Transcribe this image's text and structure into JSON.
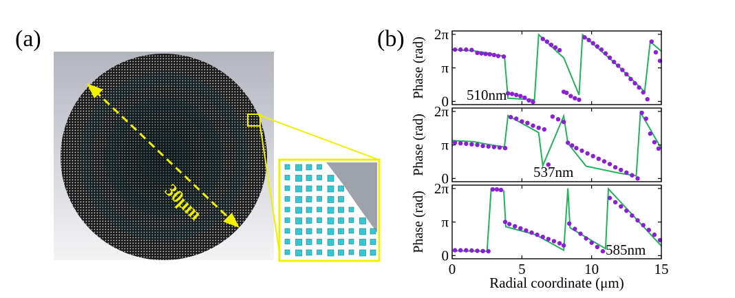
{
  "figure": {
    "panel_a_label": "(a)",
    "panel_b_label": "(b)",
    "diameter_label": "30μm",
    "colors": {
      "background_gradient_top": "#b7b9c2",
      "background_gradient_bottom": "#f2f2f3",
      "lens_disc": "#1b1b1b",
      "pillar_cyan": "#35c8d4",
      "annotation_yellow": "#f0f000",
      "simulation_green": "#22b35a",
      "measurement_purple": "#8a1fd6"
    }
  },
  "chart_data": [
    {
      "type": "line",
      "annotation": "510nm",
      "ylabel": "Phase (rad)",
      "xlim": [
        0,
        15
      ],
      "ylim": [
        -0.3,
        6.6
      ],
      "yticks": [
        {
          "value": 0,
          "label": "0"
        },
        {
          "value": 3.1416,
          "label": "π"
        },
        {
          "value": 6.2832,
          "label": "2π"
        }
      ],
      "series": [
        {
          "style": "line",
          "color": "#22b35a",
          "x": [
            0,
            1.5,
            2.5,
            3.4,
            3.75,
            4,
            5.9,
            6.2,
            7.9,
            8.0,
            9.1,
            9.35,
            12.0,
            13.8,
            14.2,
            15
          ],
          "y": [
            4.85,
            4.75,
            4.55,
            4.3,
            4.25,
            0.3,
            0.15,
            6.25,
            4.2,
            4.1,
            0.6,
            6.25,
            3.2,
            0.9,
            5.6,
            4.7
          ]
        },
        {
          "style": "markers",
          "color": "#8a1fd6",
          "x": [
            0.2,
            0.6,
            1.0,
            1.4,
            1.8,
            2.1,
            2.4,
            2.7,
            3.0,
            3.3,
            3.7,
            4.0,
            4.3,
            4.6,
            4.9,
            5.2,
            5.5,
            5.8,
            6.5,
            6.8,
            7.1,
            7.4,
            7.7,
            8.0,
            8.2,
            8.5,
            8.8,
            9.1,
            9.5,
            9.8,
            10.1,
            10.4,
            10.7,
            11.0,
            11.3,
            11.6,
            11.9,
            12.2,
            12.5,
            12.8,
            13.1,
            13.4,
            13.7,
            14.0,
            14.3,
            14.6,
            14.9
          ],
          "y": [
            4.85,
            4.85,
            4.85,
            4.82,
            4.55,
            4.5,
            4.45,
            4.42,
            4.35,
            4.25,
            4.2,
            0.75,
            0.7,
            0.6,
            0.5,
            0.35,
            0.1,
            -0.05,
            5.85,
            5.6,
            5.3,
            5.05,
            4.8,
            0.9,
            0.8,
            0.5,
            0.3,
            0.15,
            6.0,
            5.75,
            5.45,
            5.15,
            4.85,
            4.5,
            4.1,
            3.7,
            3.35,
            2.95,
            2.55,
            2.1,
            1.7,
            1.3,
            0.85,
            0.2,
            5.6,
            4.6,
            3.8
          ]
        }
      ]
    },
    {
      "type": "line",
      "annotation": "537nm",
      "ylabel": "Phase (rad)",
      "xlim": [
        0,
        15
      ],
      "ylim": [
        -0.3,
        6.6
      ],
      "yticks": [
        {
          "value": 0,
          "label": "0"
        },
        {
          "value": 3.1416,
          "label": "π"
        },
        {
          "value": 6.2832,
          "label": "2π"
        }
      ],
      "series": [
        {
          "style": "line",
          "color": "#22b35a",
          "x": [
            0,
            1.5,
            3.0,
            3.75,
            4.0,
            6.2,
            6.5,
            8.0,
            8.3,
            9.6,
            12.0,
            13.2,
            13.5,
            15
          ],
          "y": [
            3.55,
            3.45,
            3.1,
            2.95,
            5.9,
            4.3,
            1.2,
            5.85,
            3.3,
            1.15,
            0.5,
            0.25,
            6.2,
            2.8
          ]
        },
        {
          "style": "markers",
          "color": "#8a1fd6",
          "x": [
            0.2,
            0.6,
            1.0,
            1.4,
            1.8,
            2.2,
            2.6,
            3.0,
            3.4,
            3.8,
            4.2,
            4.6,
            5.0,
            5.4,
            5.8,
            6.2,
            6.6,
            6.9,
            7.2,
            7.6,
            8.0,
            8.3,
            8.6,
            8.9,
            9.3,
            9.7,
            10.1,
            10.5,
            10.9,
            11.3,
            11.7,
            12.1,
            12.5,
            12.9,
            13.3,
            13.6,
            13.9,
            14.2,
            14.5,
            14.8
          ],
          "y": [
            3.35,
            3.3,
            3.25,
            3.2,
            3.15,
            3.05,
            3.0,
            2.95,
            2.9,
            2.85,
            5.75,
            5.6,
            5.35,
            5.2,
            4.95,
            4.75,
            4.6,
            1.3,
            5.8,
            5.55,
            5.3,
            3.35,
            3.1,
            2.85,
            2.6,
            2.35,
            2.1,
            1.85,
            1.6,
            1.35,
            1.05,
            0.8,
            0.55,
            0.3,
            0.0,
            6.15,
            5.6,
            4.2,
            3.4,
            2.8
          ]
        }
      ]
    },
    {
      "type": "line",
      "annotation": "585nm",
      "ylabel": "Phase (rad)",
      "xlabel": "Radial coordinate (μm)",
      "xlim": [
        0,
        15
      ],
      "ylim": [
        -0.3,
        6.6
      ],
      "xticks": [
        {
          "value": 0,
          "label": "0"
        },
        {
          "value": 5,
          "label": "5"
        },
        {
          "value": 10,
          "label": "10"
        },
        {
          "value": 15,
          "label": "15"
        }
      ],
      "yticks": [
        {
          "value": 0,
          "label": "0"
        },
        {
          "value": 3.1416,
          "label": "π"
        },
        {
          "value": 6.2832,
          "label": "2π"
        }
      ],
      "series": [
        {
          "style": "line",
          "color": "#22b35a",
          "x": [
            0,
            2.5,
            2.8,
            3.7,
            3.85,
            6.0,
            8.0,
            8.3,
            8.45,
            11.0,
            11.2,
            15
          ],
          "y": [
            0.45,
            0.4,
            6.25,
            6.05,
            2.7,
            1.95,
            0.5,
            6.3,
            2.6,
            0.65,
            6.25,
            0.9
          ]
        },
        {
          "style": "markers",
          "color": "#8a1fd6",
          "x": [
            0.2,
            0.6,
            1.0,
            1.4,
            1.8,
            2.2,
            2.6,
            2.9,
            3.2,
            3.5,
            3.8,
            4.1,
            4.5,
            4.9,
            5.3,
            5.7,
            6.1,
            6.5,
            6.9,
            7.3,
            7.7,
            8.0,
            8.4,
            8.8,
            9.2,
            9.6,
            10.0,
            10.4,
            10.8,
            11.3,
            11.7,
            12.1,
            12.5,
            12.9,
            13.3,
            13.7,
            14.1,
            14.5,
            14.9
          ],
          "y": [
            0.5,
            0.5,
            0.5,
            0.48,
            0.45,
            0.42,
            0.4,
            6.2,
            6.2,
            6.15,
            3.15,
            2.95,
            2.75,
            2.55,
            2.35,
            2.15,
            1.95,
            1.75,
            1.55,
            1.35,
            1.15,
            0.95,
            3.0,
            2.5,
            2.05,
            1.6,
            1.2,
            0.8,
            0.4,
            5.4,
            5.0,
            4.6,
            4.2,
            3.75,
            3.3,
            2.85,
            2.4,
            1.95,
            1.45
          ]
        }
      ]
    }
  ]
}
